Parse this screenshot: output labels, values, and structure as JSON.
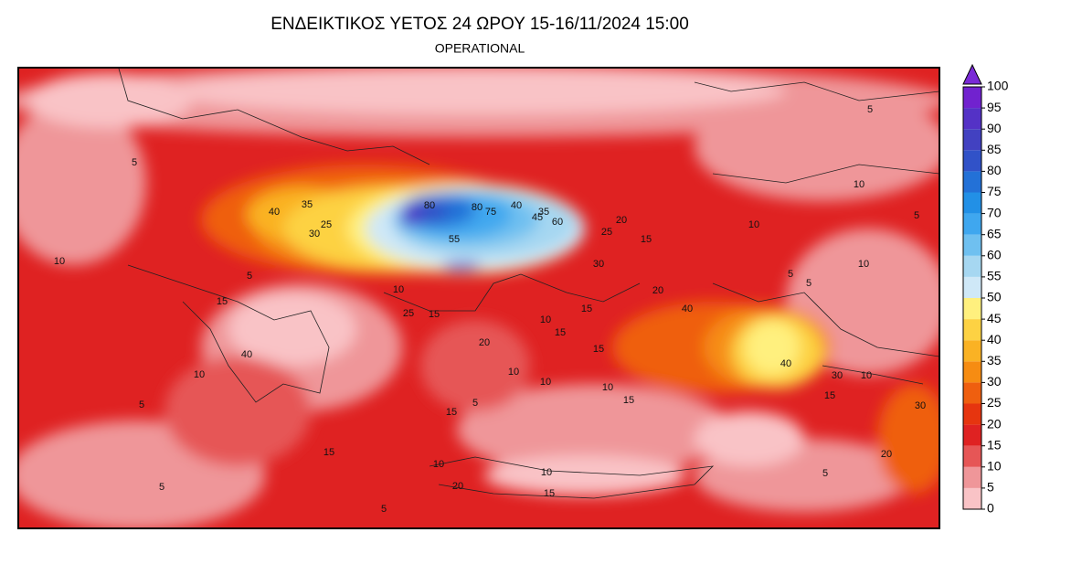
{
  "header": {
    "title": "ΕΝΔΕΙΚΤΙΚΟΣ ΥΕΤΟΣ 24 ΩΡΟΥ 15-16/11/2024 15:00",
    "subtitle": "OPERATIONAL"
  },
  "colorbar": {
    "ticks": [
      0,
      5,
      10,
      15,
      20,
      25,
      30,
      35,
      40,
      45,
      50,
      55,
      60,
      65,
      70,
      75,
      80,
      85,
      90,
      95,
      100
    ],
    "colors": [
      "#f9c3c6",
      "#ef9699",
      "#e65656",
      "#df2222",
      "#e6350f",
      "#ef5f0f",
      "#f68c12",
      "#fab224",
      "#fdd243",
      "#fff07e",
      "#cfe8f7",
      "#a6d7f1",
      "#6fc0f0",
      "#3fa7ef",
      "#2290e6",
      "#2371d7",
      "#3152c8",
      "#4241c1",
      "#5432c6",
      "#7122cf"
    ],
    "extend_color": "#7a2ad6"
  },
  "map": {
    "contour_labels": [
      5,
      5,
      10,
      5,
      10,
      40,
      35,
      30,
      25,
      10,
      5,
      15,
      10,
      25,
      15,
      20,
      10,
      15,
      15,
      15,
      15,
      20,
      25,
      30,
      60,
      45,
      40,
      35,
      80,
      75,
      80,
      55,
      40,
      20,
      5,
      5,
      10,
      40,
      30,
      10,
      30,
      15,
      20,
      5,
      10,
      5,
      15,
      5,
      5,
      5,
      15,
      10,
      10,
      10,
      15,
      10,
      20,
      10,
      15,
      40
    ]
  }
}
